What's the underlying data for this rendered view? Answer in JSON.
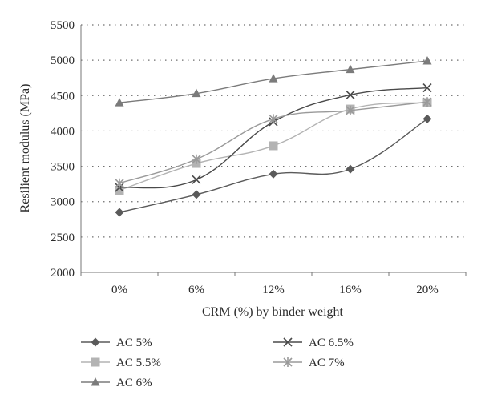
{
  "chart_data": {
    "type": "line",
    "categories": [
      "0%",
      "6%",
      "12%",
      "16%",
      "20%"
    ],
    "xlabel": "CRM (%) by binder weight",
    "ylabel": "Resilient modulus (MPa)",
    "ylim": [
      2000,
      5500
    ],
    "yticks": [
      "2000",
      "2500",
      "3000",
      "3500",
      "4000",
      "4500",
      "5000",
      "5500"
    ],
    "grid": "horizontal dotted",
    "legend_position": "bottom",
    "series": [
      {
        "name": "AC 5%",
        "values": [
          2850,
          3100,
          3390,
          3460,
          4170
        ],
        "color": "#5a5a5a",
        "marker": "diamond"
      },
      {
        "name": "AC 5.5%",
        "values": [
          3160,
          3540,
          3790,
          4310,
          4400
        ],
        "color": "#b3b3b3",
        "marker": "square"
      },
      {
        "name": "AC 6%",
        "values": [
          4400,
          4530,
          4740,
          4870,
          4990
        ],
        "color": "#7b7b7b",
        "marker": "triangle"
      },
      {
        "name": "AC 6.5%",
        "values": [
          3200,
          3310,
          4130,
          4510,
          4610
        ],
        "color": "#4a4a4a",
        "marker": "x"
      },
      {
        "name": "AC 7%",
        "values": [
          3260,
          3600,
          4170,
          4290,
          4410
        ],
        "color": "#9a9a9a",
        "marker": "star"
      }
    ]
  }
}
